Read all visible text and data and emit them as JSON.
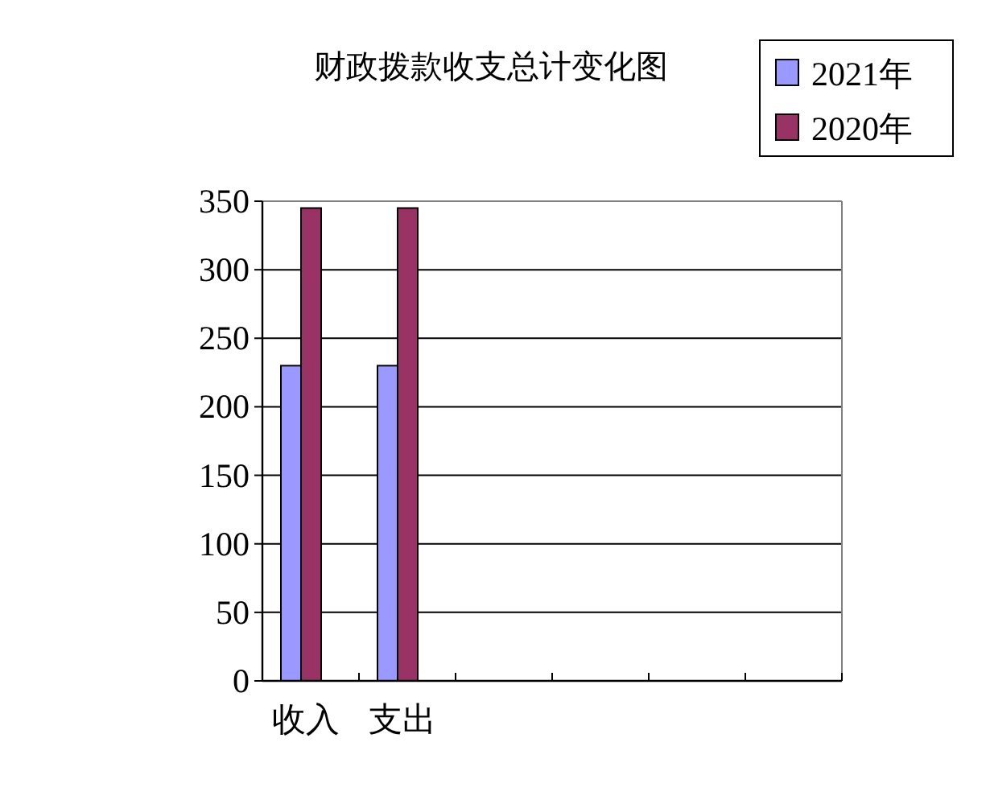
{
  "chart_data": {
    "type": "bar",
    "title": "财政拨款收支总计变化图",
    "categories": [
      "收入",
      "支出",
      null,
      null,
      null,
      null
    ],
    "series": [
      {
        "name": "2021年",
        "color": "#9999ff",
        "values": [
          230,
          230,
          null,
          null,
          null,
          null
        ]
      },
      {
        "name": "2020年",
        "color": "#993366",
        "values": [
          345,
          345,
          null,
          null,
          null,
          null
        ]
      }
    ],
    "ylim": [
      0,
      350
    ],
    "yticks": [
      0,
      50,
      100,
      150,
      200,
      250,
      300,
      350
    ],
    "grid": "y",
    "legend": "top right"
  }
}
